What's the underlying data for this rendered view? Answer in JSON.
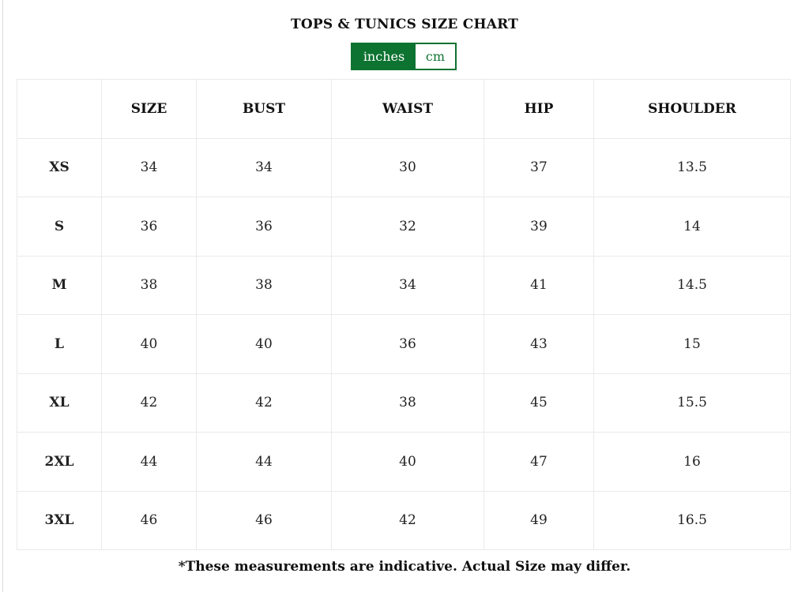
{
  "title": "TOPS & TUNICS SIZE CHART",
  "unit_toggle": {
    "options": [
      "inches",
      "cm"
    ],
    "selected": "inches"
  },
  "colors": {
    "accent": "#0d7331"
  },
  "table": {
    "headers": [
      "",
      "SIZE",
      "BUST",
      "WAIST",
      "HIP",
      "SHOULDER"
    ],
    "rows": [
      [
        "XS",
        "34",
        "34",
        "30",
        "37",
        "13.5"
      ],
      [
        "S",
        "36",
        "36",
        "32",
        "39",
        "14"
      ],
      [
        "M",
        "38",
        "38",
        "34",
        "41",
        "14.5"
      ],
      [
        "L",
        "40",
        "40",
        "36",
        "43",
        "15"
      ],
      [
        "XL",
        "42",
        "42",
        "38",
        "45",
        "15.5"
      ],
      [
        "2XL",
        "44",
        "44",
        "40",
        "47",
        "16"
      ],
      [
        "3XL",
        "46",
        "46",
        "42",
        "49",
        "16.5"
      ]
    ]
  },
  "footnote": "*These measurements are indicative. Actual Size may differ."
}
